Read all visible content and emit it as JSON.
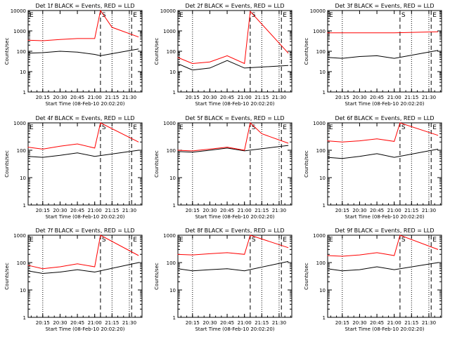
{
  "chart_data": [
    {
      "type": "line",
      "title": "Det 1f BLACK = Events, RED = LLD",
      "xlabel": "Start Time (08-Feb-10 20:02:20)",
      "ylabel": "Counts/sec",
      "y_scale": "log",
      "y_ticks": [
        "1",
        "10",
        "100",
        "1000",
        "10000"
      ],
      "x_ticks": [
        "20:15",
        "20:30",
        "20:45",
        "21:00",
        "21:15",
        "21:30"
      ],
      "markers": [
        "S",
        "E"
      ],
      "series": [
        {
          "color": "#000000",
          "x": [
            "20:02",
            "20:15",
            "20:30",
            "20:45",
            "21:00",
            "21:05",
            "21:38"
          ],
          "y": [
            80,
            85,
            100,
            90,
            70,
            60,
            130
          ]
        },
        {
          "color": "#ff0000",
          "x": [
            "20:02",
            "20:15",
            "20:30",
            "20:45",
            "21:00",
            "21:05",
            "21:15",
            "21:38"
          ],
          "y": [
            350,
            330,
            380,
            420,
            420,
            10000,
            1500,
            500
          ]
        }
      ]
    },
    {
      "type": "line",
      "title": "Det 2f BLACK = Events, RED = LLD",
      "xlabel": "Start Time (08-Feb-10 20:02:20)",
      "ylabel": "Counts/sec",
      "y_scale": "log",
      "y_ticks": [
        "1",
        "10",
        "100",
        "1000",
        "10000"
      ],
      "x_ticks": [
        "20:15",
        "20:30",
        "20:45",
        "21:00",
        "21:15",
        "21:30"
      ],
      "markers": [
        "S",
        "E"
      ],
      "series": [
        {
          "color": "#000000",
          "x": [
            "20:02",
            "20:15",
            "20:30",
            "20:45",
            "21:00",
            "21:38"
          ],
          "y": [
            25,
            12,
            15,
            35,
            15,
            20
          ]
        },
        {
          "color": "#ff0000",
          "x": [
            "20:02",
            "20:15",
            "20:30",
            "20:45",
            "21:00",
            "21:05",
            "21:38"
          ],
          "y": [
            50,
            25,
            30,
            60,
            25,
            9000,
            80
          ]
        }
      ]
    },
    {
      "type": "line",
      "title": "Det 3f BLACK = Events, RED = LLD",
      "xlabel": "Start Time (08-Feb-10 20:02:20)",
      "ylabel": "Counts/sec",
      "y_scale": "log",
      "y_ticks": [
        "1",
        "10",
        "100",
        "1000",
        "10000"
      ],
      "x_ticks": [
        "20:15",
        "20:30",
        "20:45",
        "21:00",
        "21:15",
        "21:30"
      ],
      "markers": [
        "S",
        "E"
      ],
      "series": [
        {
          "color": "#000000",
          "x": [
            "20:02",
            "20:15",
            "20:30",
            "20:45",
            "21:00",
            "21:38"
          ],
          "y": [
            50,
            45,
            55,
            60,
            45,
            110
          ]
        },
        {
          "color": "#ff0000",
          "x": [
            "20:02",
            "20:15",
            "20:30",
            "20:45",
            "21:00",
            "21:38"
          ],
          "y": [
            800,
            800,
            800,
            800,
            800,
            900
          ]
        }
      ]
    },
    {
      "type": "line",
      "title": "Det 4f BLACK = Events, RED = LLD",
      "xlabel": "Start Time (08-Feb-10 20:02:20)",
      "ylabel": "Counts/sec",
      "y_scale": "log",
      "y_ticks": [
        "1",
        "10",
        "100",
        "1000"
      ],
      "x_ticks": [
        "20:15",
        "20:30",
        "20:45",
        "21:00",
        "21:15",
        "21:30"
      ],
      "markers": [
        "S",
        "E"
      ],
      "series": [
        {
          "color": "#000000",
          "x": [
            "20:02",
            "20:15",
            "20:30",
            "20:45",
            "21:00",
            "21:38"
          ],
          "y": [
            60,
            55,
            65,
            80,
            60,
            100
          ]
        },
        {
          "color": "#ff0000",
          "x": [
            "20:02",
            "20:15",
            "20:30",
            "20:45",
            "21:00",
            "21:05",
            "21:38"
          ],
          "y": [
            130,
            110,
            140,
            170,
            120,
            1000,
            200
          ]
        }
      ]
    },
    {
      "type": "line",
      "title": "Det 5f BLACK = Events, RED = LLD",
      "xlabel": "Start Time (08-Feb-10 20:02:20)",
      "ylabel": "Counts/sec",
      "y_scale": "log",
      "y_ticks": [
        "1",
        "10",
        "100",
        "1000"
      ],
      "x_ticks": [
        "20:15",
        "20:30",
        "20:45",
        "21:00",
        "21:15",
        "21:30"
      ],
      "markers": [
        "S",
        "E"
      ],
      "series": [
        {
          "color": "#000000",
          "x": [
            "20:02",
            "20:15",
            "20:30",
            "20:45",
            "21:00",
            "21:38"
          ],
          "y": [
            90,
            85,
            100,
            120,
            95,
            150
          ]
        },
        {
          "color": "#ff0000",
          "x": [
            "20:02",
            "20:15",
            "20:30",
            "20:45",
            "21:00",
            "21:05",
            "21:15",
            "21:38"
          ],
          "y": [
            100,
            95,
            110,
            130,
            100,
            1000,
            400,
            180
          ]
        }
      ]
    },
    {
      "type": "line",
      "title": "Det 6f BLACK = Events, RED = LLD",
      "xlabel": "Start Time (08-Feb-10 20:02:20)",
      "ylabel": "Counts/sec",
      "y_scale": "log",
      "y_ticks": [
        "1",
        "10",
        "100",
        "1000"
      ],
      "x_ticks": [
        "20:15",
        "20:30",
        "20:45",
        "21:00",
        "21:15",
        "21:30"
      ],
      "markers": [
        "S",
        "E"
      ],
      "series": [
        {
          "color": "#000000",
          "x": [
            "20:02",
            "20:15",
            "20:30",
            "20:45",
            "21:00",
            "21:38"
          ],
          "y": [
            55,
            50,
            60,
            75,
            55,
            110
          ]
        },
        {
          "color": "#ff0000",
          "x": [
            "20:02",
            "20:15",
            "20:30",
            "20:45",
            "21:00",
            "21:05",
            "21:38"
          ],
          "y": [
            220,
            200,
            220,
            260,
            210,
            1000,
            350
          ]
        }
      ]
    },
    {
      "type": "line",
      "title": "Det 7f BLACK = Events, RED = LLD",
      "xlabel": "Start Time (08-Feb-10 20:02:20)",
      "ylabel": "Counts/sec",
      "y_scale": "log",
      "y_ticks": [
        "1",
        "10",
        "100",
        "1000"
      ],
      "x_ticks": [
        "20:15",
        "20:30",
        "20:45",
        "21:00",
        "21:15",
        "21:30"
      ],
      "markers": [
        "S",
        "E"
      ],
      "series": [
        {
          "color": "#000000",
          "x": [
            "20:02",
            "20:15",
            "20:30",
            "20:45",
            "21:00",
            "21:38"
          ],
          "y": [
            50,
            40,
            45,
            55,
            45,
            100
          ]
        },
        {
          "color": "#ff0000",
          "x": [
            "20:02",
            "20:15",
            "20:30",
            "20:45",
            "21:00",
            "21:05",
            "21:38"
          ],
          "y": [
            80,
            60,
            70,
            90,
            70,
            1000,
            180
          ]
        }
      ]
    },
    {
      "type": "line",
      "title": "Det 8f BLACK = Events, RED = LLD",
      "xlabel": "Start Time (08-Feb-10 20:02:20)",
      "ylabel": "Counts/sec",
      "y_scale": "log",
      "y_ticks": [
        "1",
        "10",
        "100",
        "1000"
      ],
      "x_ticks": [
        "20:15",
        "20:30",
        "20:45",
        "21:00",
        "21:15",
        "21:30"
      ],
      "markers": [
        "S",
        "E"
      ],
      "series": [
        {
          "color": "#000000",
          "x": [
            "20:02",
            "20:15",
            "20:30",
            "20:45",
            "21:00",
            "21:38"
          ],
          "y": [
            60,
            50,
            55,
            60,
            50,
            110
          ]
        },
        {
          "color": "#ff0000",
          "x": [
            "20:02",
            "20:15",
            "20:30",
            "20:45",
            "21:00",
            "21:05",
            "21:38"
          ],
          "y": [
            200,
            190,
            210,
            230,
            200,
            1000,
            350
          ]
        }
      ]
    },
    {
      "type": "line",
      "title": "Det 9f BLACK = Events, RED = LLD",
      "xlabel": "Start Time (08-Feb-10 20:02:20)",
      "ylabel": "Counts/sec",
      "y_scale": "log",
      "y_ticks": [
        "1",
        "10",
        "100",
        "1000"
      ],
      "x_ticks": [
        "20:15",
        "20:30",
        "20:45",
        "21:00",
        "21:15",
        "21:30"
      ],
      "markers": [
        "S",
        "E"
      ],
      "series": [
        {
          "color": "#000000",
          "x": [
            "20:02",
            "20:15",
            "20:30",
            "20:45",
            "21:00",
            "21:38"
          ],
          "y": [
            60,
            50,
            55,
            70,
            55,
            100
          ]
        },
        {
          "color": "#ff0000",
          "x": [
            "20:02",
            "20:15",
            "20:30",
            "20:45",
            "21:00",
            "21:05",
            "21:38"
          ],
          "y": [
            180,
            170,
            190,
            230,
            180,
            1000,
            300
          ]
        }
      ]
    }
  ]
}
